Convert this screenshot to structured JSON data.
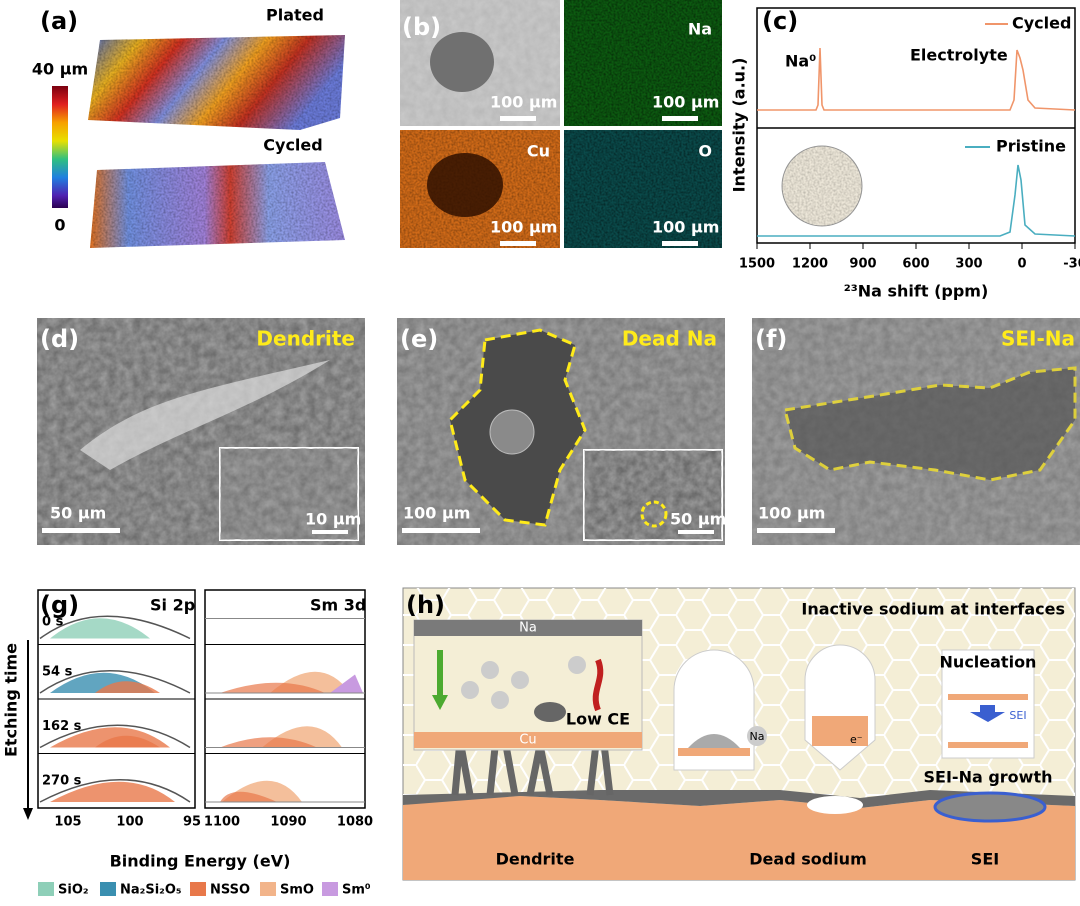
{
  "panels": {
    "a": {
      "label": "(a)",
      "top": "Plated",
      "bottom": "Cycled",
      "scale_max": "40 μm",
      "scale_min": "0"
    },
    "b": {
      "label": "(b)",
      "elements": [
        "Na",
        "Cu",
        "O"
      ],
      "scalebars": [
        "100 μm",
        "100 μm",
        "100 μm",
        "100 μm"
      ]
    },
    "c": {
      "label": "(c)",
      "series": [
        "Cycled",
        "Pristine"
      ],
      "peak": "Na⁰",
      "annotation": "Electrolyte",
      "ylabel": "Intensity (a.u.)",
      "xlabel": "²³Na shift (ppm)",
      "xticks": [
        "1500",
        "1200",
        "900",
        "600",
        "300",
        "0",
        "-30"
      ]
    },
    "d": {
      "label": "(d)",
      "title": "Dendrite",
      "scalebar": "50 μm",
      "inset_scalebar": "10 μm"
    },
    "e": {
      "label": "(e)",
      "title": "Dead Na",
      "scalebar": "100 μm",
      "inset_scalebar": "50 μm"
    },
    "f": {
      "label": "(f)",
      "title": "SEI-Na",
      "scalebar": "100 μm"
    },
    "g": {
      "label": "(g)",
      "titles": [
        "Si 2p",
        "Sm 3d"
      ],
      "rows": [
        "0 s",
        "54 s",
        "162 s",
        "270 s"
      ],
      "ylabel": "Etching time",
      "xticks_left": [
        "105",
        "100",
        "95"
      ],
      "xticks_right": [
        "1100",
        "1090",
        "1080"
      ],
      "xlabel": "Binding Energy (eV)",
      "legend": [
        "SiO₂",
        "Na₂Si₂O₅",
        "NSSO",
        "SmO",
        "Sm⁰"
      ]
    },
    "h": {
      "label": "(h)",
      "title": "Inactive sodium at interfaces",
      "top_metal": "Na",
      "bottom_metal": "Cu",
      "low_ce": "Low CE",
      "bubble_na": "Na",
      "electron": "e⁻",
      "nucleation": "Nucleation",
      "sei": "SEI",
      "sei_growth": "SEI-Na growth",
      "captions": [
        "Dendrite",
        "Dead sodium",
        "SEI"
      ]
    }
  }
}
